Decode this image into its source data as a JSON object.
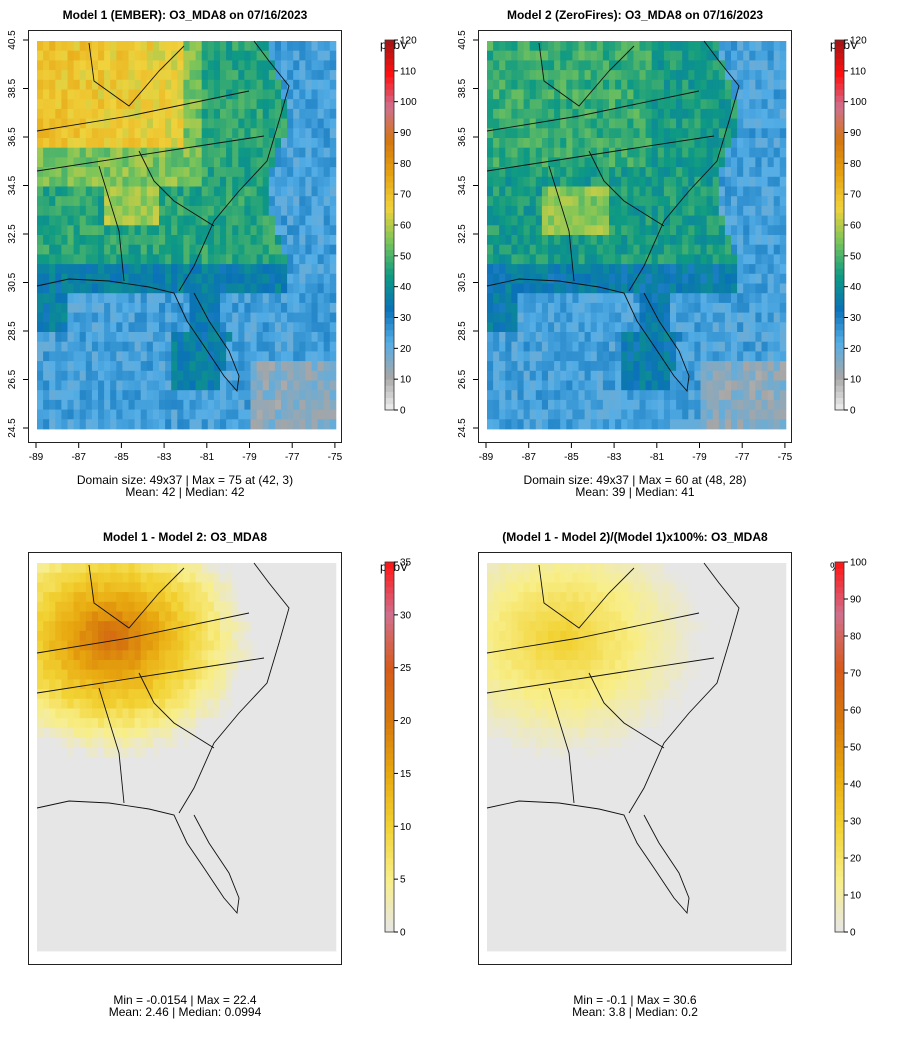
{
  "chart_data": [
    {
      "type": "heatmap",
      "title": "Model 1 (EMBER): O3_MDA8 on 07/16/2023",
      "x_ticks": [
        "-89",
        "-87",
        "-85",
        "-83",
        "-81",
        "-79",
        "-77",
        "-75"
      ],
      "y_ticks": [
        "24.5",
        "26.5",
        "28.5",
        "30.5",
        "32.5",
        "34.5",
        "36.5",
        "38.5",
        "40.5"
      ],
      "xlim": [
        -89,
        -75
      ],
      "ylim": [
        24.5,
        40.5
      ],
      "colorbar": {
        "unit": "ppbV",
        "min": 0,
        "max": 120,
        "ticks": [
          "0",
          "10",
          "20",
          "30",
          "40",
          "50",
          "60",
          "70",
          "80",
          "90",
          "100",
          "110",
          "120"
        ]
      },
      "stats_line1": "Domain size: 49x37 | Max = 75 at (42, 3)",
      "stats_line2": "Mean: 42 |  Median: 42",
      "domain_size": "49x37",
      "max": 75,
      "max_at": [
        42,
        3
      ],
      "mean": 42,
      "median": 42
    },
    {
      "type": "heatmap",
      "title": "Model 2 (ZeroFires): O3_MDA8 on 07/16/2023",
      "x_ticks": [
        "-89",
        "-87",
        "-85",
        "-83",
        "-81",
        "-79",
        "-77",
        "-75"
      ],
      "y_ticks": [
        "24.5",
        "26.5",
        "28.5",
        "30.5",
        "32.5",
        "34.5",
        "36.5",
        "38.5",
        "40.5"
      ],
      "xlim": [
        -89,
        -75
      ],
      "ylim": [
        24.5,
        40.5
      ],
      "colorbar": {
        "unit": "ppbV",
        "min": 0,
        "max": 120,
        "ticks": [
          "0",
          "10",
          "20",
          "30",
          "40",
          "50",
          "60",
          "70",
          "80",
          "90",
          "100",
          "110",
          "120"
        ]
      },
      "stats_line1": "Domain size: 49x37 | Max = 60 at (48, 28)",
      "stats_line2": "Mean: 39 |  Median: 41",
      "domain_size": "49x37",
      "max": 60,
      "max_at": [
        48,
        28
      ],
      "mean": 39,
      "median": 41
    },
    {
      "type": "heatmap",
      "title": "Model 1 - Model 2: O3_MDA8",
      "colorbar": {
        "unit": "ppbV",
        "min": 0,
        "max": 35,
        "ticks": [
          "0",
          "5",
          "10",
          "15",
          "20",
          "25",
          "30",
          "35"
        ]
      },
      "stats_line1": "Min = -0.0154 | Max = 22.4",
      "stats_line2": "Mean: 2.46 |  Median: 0.0994",
      "min": -0.0154,
      "max": 22.4,
      "mean": 2.46,
      "median": 0.0994
    },
    {
      "type": "heatmap",
      "title": "(Model 1 - Model 2)/(Model 1)x100%: O3_MDA8",
      "colorbar": {
        "unit": "%",
        "min": 0,
        "max": 100,
        "ticks": [
          "0",
          "10",
          "20",
          "30",
          "40",
          "50",
          "60",
          "70",
          "80",
          "90",
          "100"
        ]
      },
      "stats_line1": "Min = -0.1 | Max = 30.6",
      "stats_line2": "Mean: 3.8 |  Median: 0.2",
      "min": -0.1,
      "max": 30.6,
      "mean": 3.8,
      "median": 0.2
    }
  ],
  "colors": {
    "conc_scale": [
      "#f0f0f0",
      "#a6a6a6",
      "#55aee6",
      "#0a71b8",
      "#0e9a83",
      "#78c45a",
      "#f0d23c",
      "#e6a312",
      "#d4770f",
      "#d07090",
      "#ff1010",
      "#a01515"
    ],
    "diff_scale": [
      "#e6e6e6",
      "#f8ee88",
      "#f2d233",
      "#e8a80f",
      "#d6780d",
      "#d65a1c",
      "#d0708d",
      "#ff1414"
    ]
  }
}
